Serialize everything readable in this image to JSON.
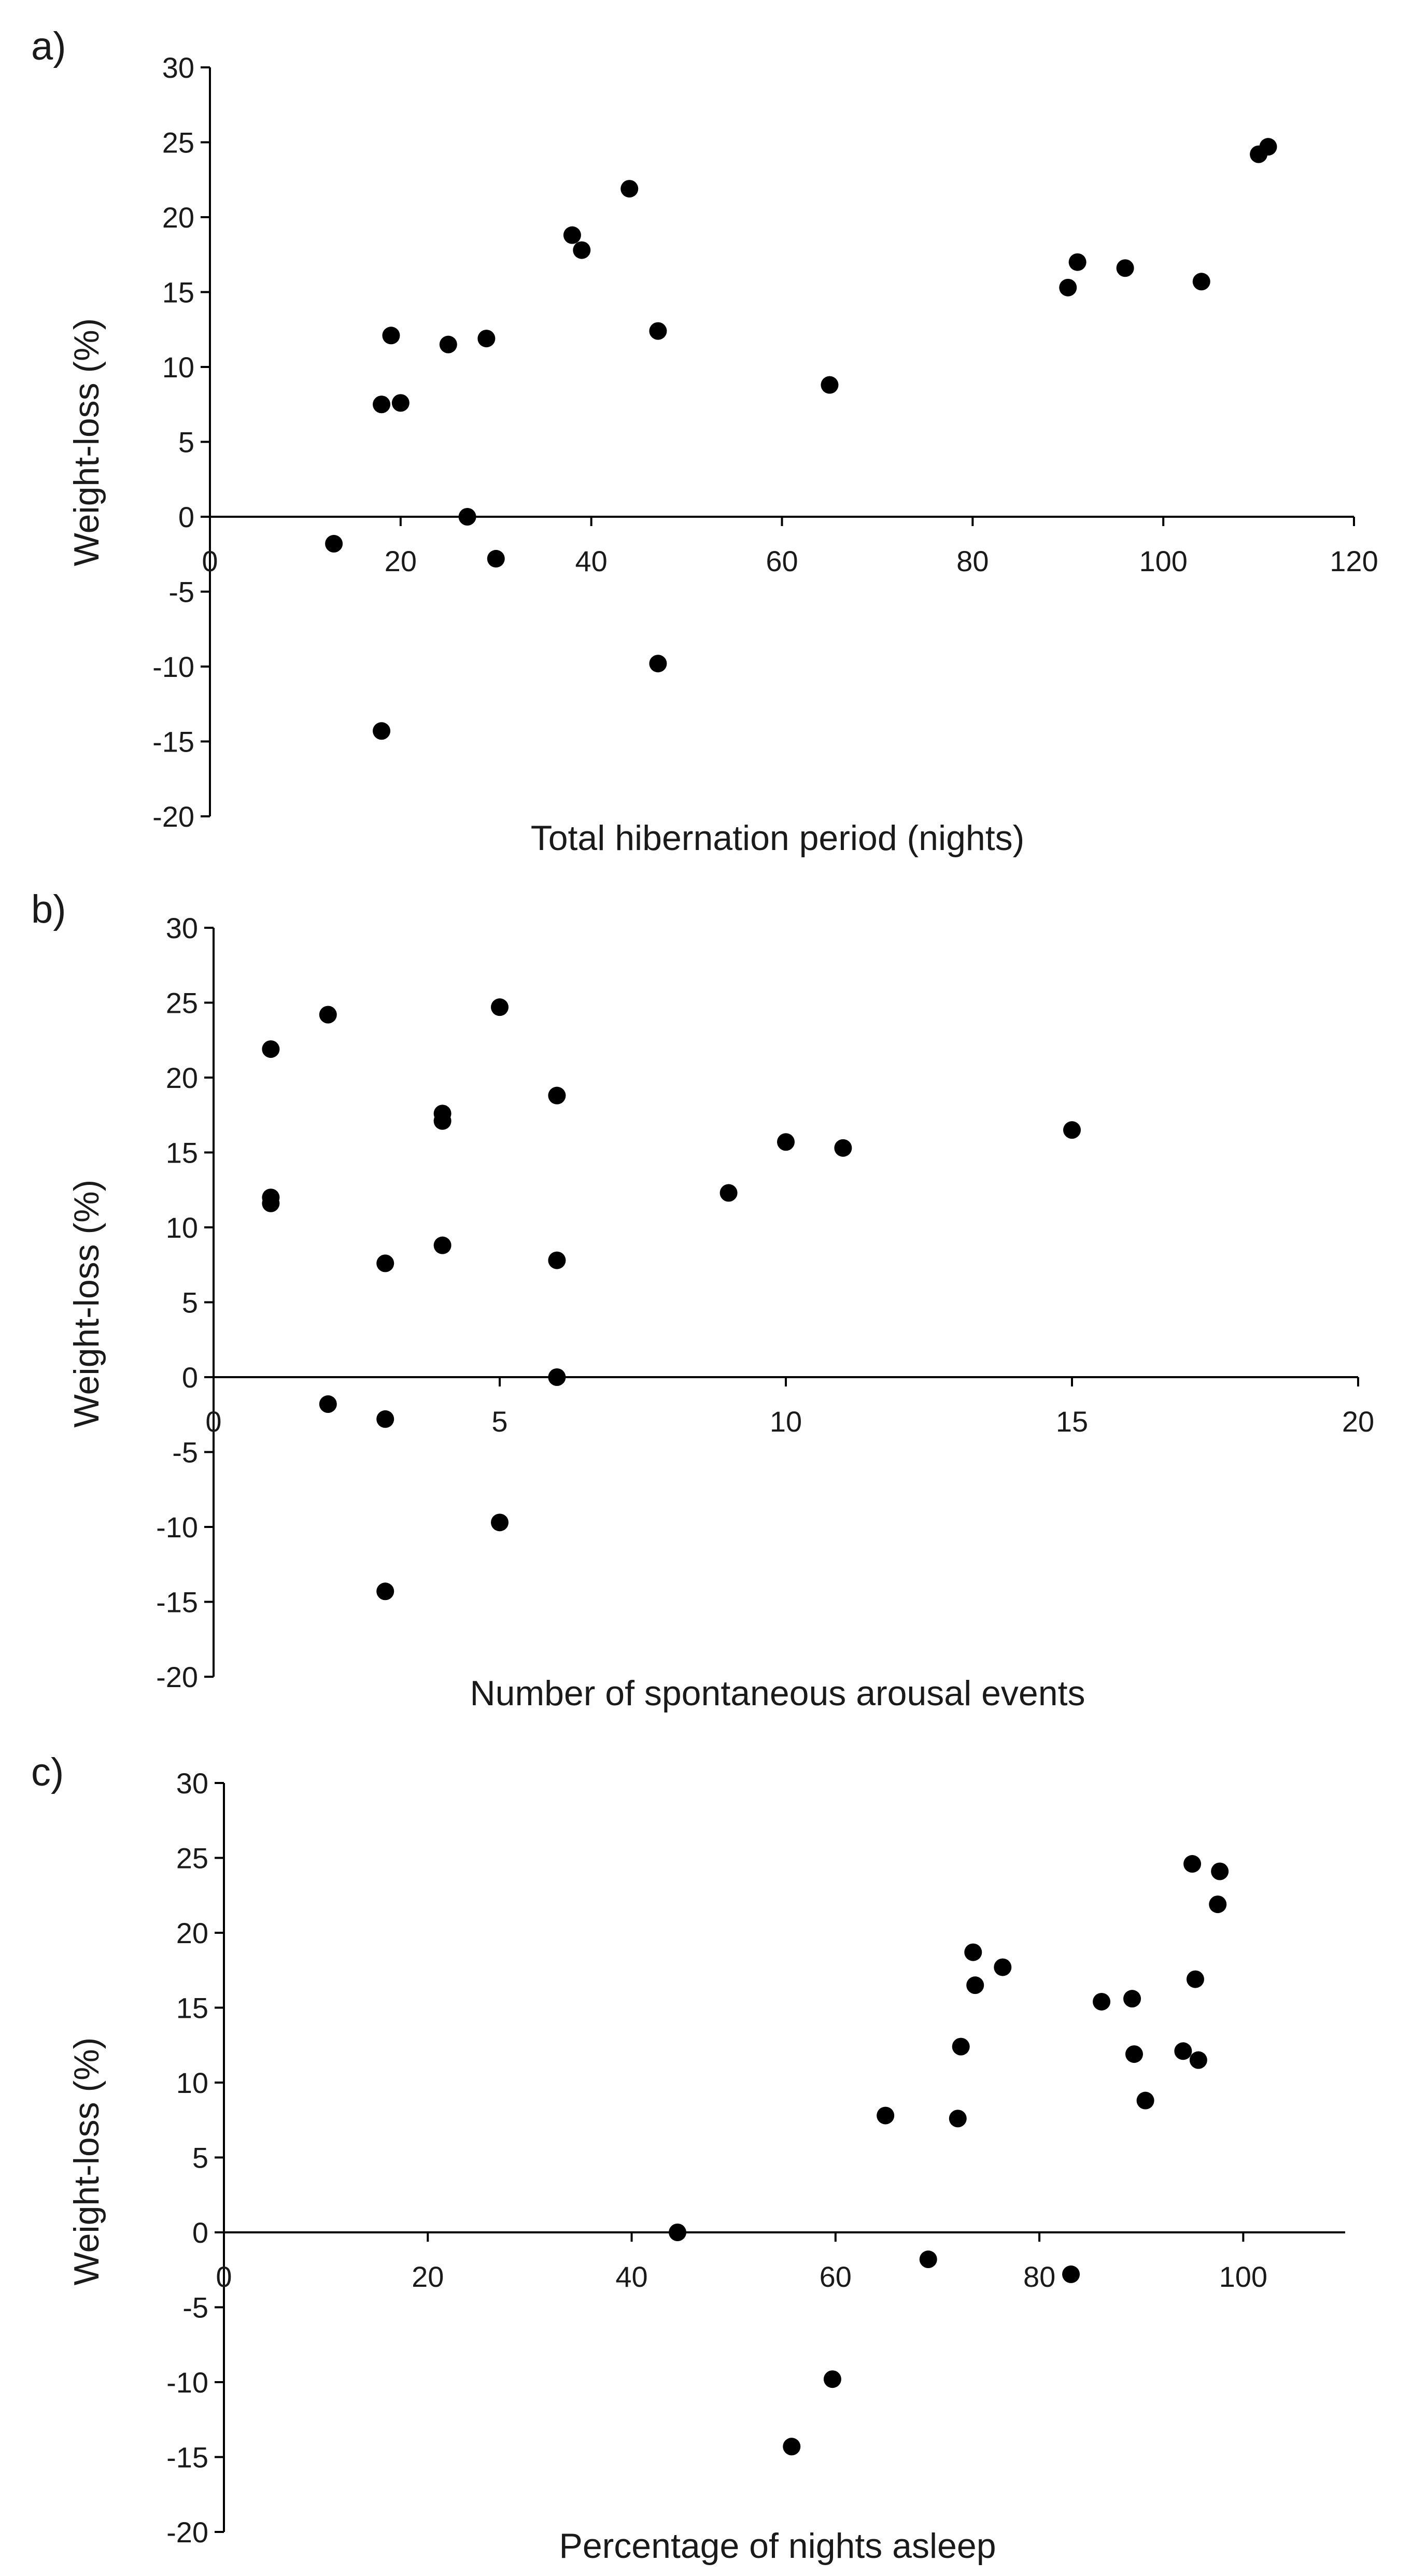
{
  "colors": {
    "marker": "#000000",
    "axis": "#000000",
    "text": "#1a1a1a",
    "background": "#ffffff"
  },
  "chart_data": [
    {
      "panel_label": "a)",
      "type": "scatter",
      "title": "",
      "xlabel": "Total hibernation period (nights)",
      "ylabel": "Weight-loss (%)",
      "xlim": [
        0,
        120
      ],
      "ylim": [
        -20,
        30
      ],
      "xticks": [
        0,
        20,
        40,
        60,
        80,
        100,
        120
      ],
      "yticks": [
        -20,
        -15,
        -10,
        -5,
        0,
        5,
        10,
        15,
        20,
        25,
        30
      ],
      "grid": false,
      "series": [
        {
          "name": "",
          "points": [
            {
              "x": 13,
              "y": -1.8
            },
            {
              "x": 18,
              "y": -14.3
            },
            {
              "x": 18,
              "y": 7.5
            },
            {
              "x": 19,
              "y": 12.1
            },
            {
              "x": 20,
              "y": 7.6
            },
            {
              "x": 25,
              "y": 11.5
            },
            {
              "x": 27,
              "y": 0
            },
            {
              "x": 29,
              "y": 11.9
            },
            {
              "x": 30,
              "y": -2.8
            },
            {
              "x": 38,
              "y": 18.8
            },
            {
              "x": 39,
              "y": 17.8
            },
            {
              "x": 44,
              "y": 21.9
            },
            {
              "x": 47,
              "y": 12.4
            },
            {
              "x": 47,
              "y": -9.8
            },
            {
              "x": 65,
              "y": 8.8
            },
            {
              "x": 90,
              "y": 15.3
            },
            {
              "x": 91,
              "y": 17
            },
            {
              "x": 96,
              "y": 16.6
            },
            {
              "x": 104,
              "y": 15.7
            },
            {
              "x": 110,
              "y": 24.2
            },
            {
              "x": 111,
              "y": 24.7
            }
          ]
        }
      ]
    },
    {
      "panel_label": "b)",
      "type": "scatter",
      "title": "",
      "xlabel": "Number of spontaneous arousal events",
      "ylabel": "Weight-loss (%)",
      "xlim": [
        0,
        20
      ],
      "ylim": [
        -20,
        30
      ],
      "xticks": [
        0,
        5,
        10,
        15,
        20
      ],
      "yticks": [
        -20,
        -15,
        -10,
        -5,
        0,
        5,
        10,
        15,
        20,
        25,
        30
      ],
      "grid": false,
      "series": [
        {
          "name": "",
          "points": [
            {
              "x": 1,
              "y": 21.9
            },
            {
              "x": 1,
              "y": 12.0
            },
            {
              "x": 1,
              "y": 11.6
            },
            {
              "x": 2,
              "y": 24.2
            },
            {
              "x": 2,
              "y": -1.8
            },
            {
              "x": 3,
              "y": 7.6
            },
            {
              "x": 3,
              "y": -2.8
            },
            {
              "x": 3,
              "y": -14.3
            },
            {
              "x": 4,
              "y": 17.6
            },
            {
              "x": 4,
              "y": 17.1
            },
            {
              "x": 4,
              "y": 8.8
            },
            {
              "x": 5,
              "y": 24.7
            },
            {
              "x": 5,
              "y": -9.7
            },
            {
              "x": 6,
              "y": 18.8
            },
            {
              "x": 6,
              "y": 7.8
            },
            {
              "x": 6,
              "y": 0
            },
            {
              "x": 9,
              "y": 12.3
            },
            {
              "x": 10,
              "y": 15.7
            },
            {
              "x": 11,
              "y": 15.3
            },
            {
              "x": 15,
              "y": 16.5
            }
          ]
        }
      ]
    },
    {
      "panel_label": "c)",
      "type": "scatter",
      "title": "",
      "xlabel": "Percentage of nights asleep",
      "ylabel": "Weight-loss (%)",
      "xlim": [
        0,
        110
      ],
      "ylim": [
        -20,
        30
      ],
      "xticks": [
        0,
        20,
        40,
        60,
        80,
        100
      ],
      "yticks": [
        -20,
        -15,
        -10,
        -5,
        0,
        5,
        10,
        15,
        20,
        25,
        30
      ],
      "grid": false,
      "series": [
        {
          "name": "",
          "points": [
            {
              "x": 44.5,
              "y": 0
            },
            {
              "x": 55.7,
              "y": -14.3
            },
            {
              "x": 59.7,
              "y": -9.8
            },
            {
              "x": 64.9,
              "y": 7.8
            },
            {
              "x": 69.1,
              "y": -1.8
            },
            {
              "x": 72.0,
              "y": 7.6
            },
            {
              "x": 72.3,
              "y": 12.4
            },
            {
              "x": 73.5,
              "y": 18.7
            },
            {
              "x": 73.7,
              "y": 16.5
            },
            {
              "x": 76.4,
              "y": 17.7
            },
            {
              "x": 83.1,
              "y": -2.8
            },
            {
              "x": 86.1,
              "y": 15.4
            },
            {
              "x": 89.1,
              "y": 15.6
            },
            {
              "x": 89.3,
              "y": 11.9
            },
            {
              "x": 90.4,
              "y": 8.8
            },
            {
              "x": 94.1,
              "y": 12.1
            },
            {
              "x": 95.0,
              "y": 24.6
            },
            {
              "x": 95.3,
              "y": 16.9
            },
            {
              "x": 95.6,
              "y": 11.5
            },
            {
              "x": 97.5,
              "y": 21.9
            },
            {
              "x": 97.7,
              "y": 24.1
            }
          ]
        }
      ]
    }
  ]
}
